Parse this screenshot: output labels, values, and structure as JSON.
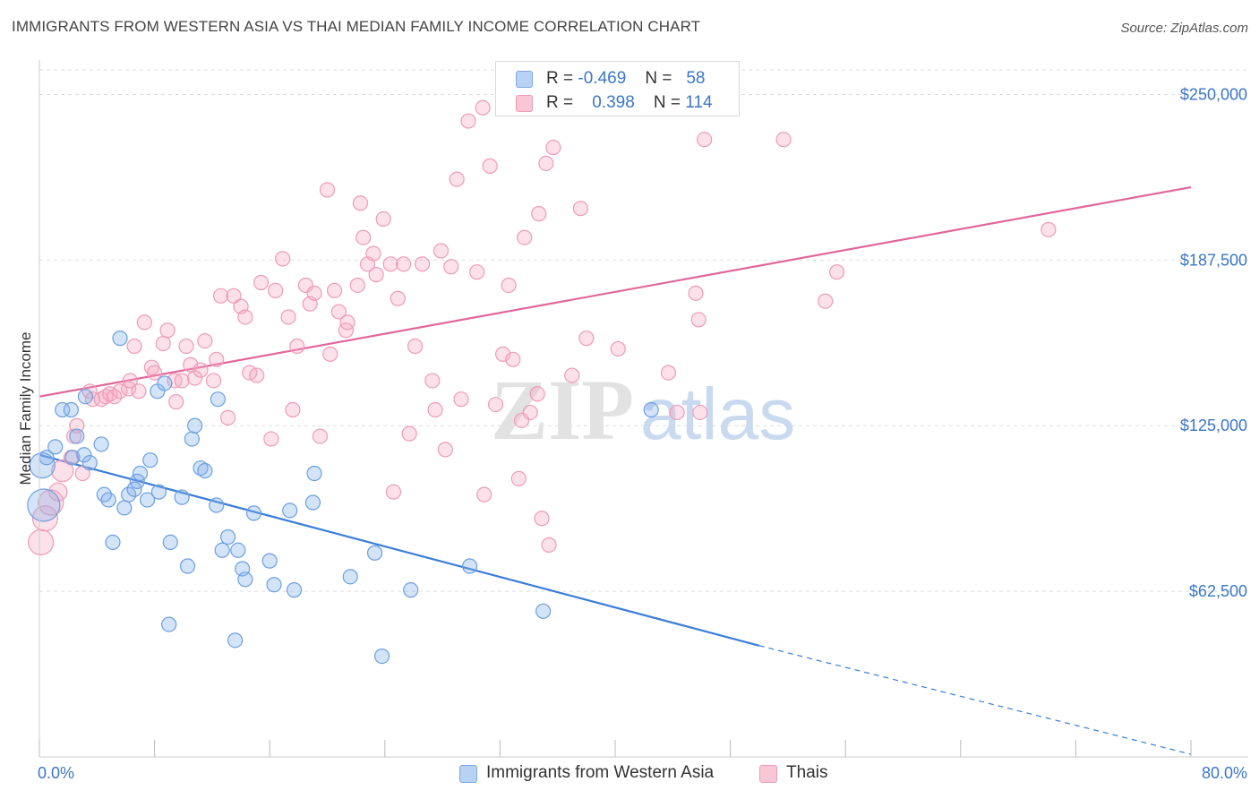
{
  "title": "IMMIGRANTS FROM WESTERN ASIA VS THAI MEDIAN FAMILY INCOME CORRELATION CHART",
  "source": "Source: ZipAtlas.com",
  "watermark": {
    "zip": "ZIP",
    "atlas": "atlas"
  },
  "legend": {
    "rows": [
      {
        "r_label": "R =",
        "r_value": "-0.469",
        "n_label": "N =",
        "n_value": "58",
        "color": "#a9c8f0"
      },
      {
        "r_label": "R =",
        "r_value": "0.398",
        "n_label": "N =",
        "n_value": "114",
        "color": "#f7b8cc"
      }
    ]
  },
  "colors": {
    "blue": "#3b7dd8",
    "blue_fill": "rgba(130,175,235,0.35)",
    "blue_stroke": "#6c9fe0",
    "pink": "#e0679a",
    "pink_fill": "rgba(245,170,195,0.35)",
    "pink_stroke": "#ee9bb8",
    "grid": "#dddddd",
    "tick_text": "#3b76c8"
  },
  "chart_data": {
    "type": "scatter",
    "title": "IMMIGRANTS FROM WESTERN ASIA VS THAI MEDIAN FAMILY INCOME CORRELATION CHART",
    "xlabel": "",
    "ylabel": "Median Family Income",
    "xlim": [
      0,
      80
    ],
    "ylim": [
      0,
      262000
    ],
    "x_tick_labels": [
      "0.0%",
      "80.0%"
    ],
    "y_ticks": [
      62500,
      125000,
      187500,
      250000
    ],
    "y_tick_labels": [
      "$62,500",
      "$125,000",
      "$187,500",
      "$250,000"
    ],
    "grid": true,
    "legend_position": "bottom",
    "series": [
      {
        "name": "Immigrants from Western Asia",
        "color": "#6c9fe0",
        "trend": {
          "x0": 0,
          "y0": 114000,
          "x1": 50,
          "y1": 42000,
          "dash_to_x": 80,
          "dash_to_y": 1000
        },
        "points": [
          [
            0.2,
            110000,
            14
          ],
          [
            0.3,
            95000,
            18
          ],
          [
            0.5,
            113000,
            8
          ],
          [
            1.1,
            117000,
            8
          ],
          [
            1.6,
            131000,
            8
          ],
          [
            2.2,
            131000,
            8
          ],
          [
            2.3,
            113000,
            8
          ],
          [
            2.6,
            121000,
            8
          ],
          [
            3.1,
            114000,
            8
          ],
          [
            3.2,
            136000,
            8
          ],
          [
            3.5,
            111000,
            8
          ],
          [
            4.3,
            118000,
            8
          ],
          [
            4.5,
            99000,
            8
          ],
          [
            4.8,
            97000,
            8
          ],
          [
            5.1,
            81000,
            8
          ],
          [
            5.6,
            158000,
            8
          ],
          [
            5.9,
            94000,
            8
          ],
          [
            6.2,
            99000,
            8
          ],
          [
            6.6,
            101000,
            8
          ],
          [
            6.8,
            104000,
            8
          ],
          [
            7.0,
            107000,
            8
          ],
          [
            7.5,
            97000,
            8
          ],
          [
            7.7,
            112000,
            8
          ],
          [
            8.2,
            138000,
            8
          ],
          [
            8.3,
            100000,
            8
          ],
          [
            8.7,
            141000,
            8
          ],
          [
            9.0,
            50000,
            8
          ],
          [
            9.1,
            81000,
            8
          ],
          [
            9.9,
            98000,
            8
          ],
          [
            10.3,
            72000,
            8
          ],
          [
            10.6,
            120000,
            8
          ],
          [
            10.8,
            125000,
            8
          ],
          [
            11.2,
            109000,
            8
          ],
          [
            11.5,
            108000,
            8
          ],
          [
            12.3,
            95000,
            8
          ],
          [
            12.4,
            135000,
            8
          ],
          [
            12.7,
            78000,
            8
          ],
          [
            13.1,
            83000,
            8
          ],
          [
            13.6,
            44000,
            8
          ],
          [
            13.8,
            78000,
            8
          ],
          [
            14.1,
            71000,
            8
          ],
          [
            14.3,
            67000,
            8
          ],
          [
            14.9,
            92000,
            8
          ],
          [
            16.0,
            74000,
            8
          ],
          [
            16.3,
            65000,
            8
          ],
          [
            17.4,
            93000,
            8
          ],
          [
            17.7,
            63000,
            8
          ],
          [
            19.0,
            96000,
            8
          ],
          [
            19.1,
            107000,
            8
          ],
          [
            21.6,
            68000,
            8
          ],
          [
            23.3,
            77000,
            8
          ],
          [
            23.8,
            38000,
            8
          ],
          [
            25.8,
            63000,
            8
          ],
          [
            29.9,
            72000,
            8
          ],
          [
            35.0,
            55000,
            8
          ],
          [
            42.5,
            131000,
            8
          ]
        ]
      },
      {
        "name": "Thais",
        "color": "#ee9bb8",
        "trend": {
          "x0": 0,
          "y0": 136000,
          "x1": 80,
          "y1": 215000
        },
        "points": [
          [
            0.1,
            81000,
            14
          ],
          [
            0.4,
            90000,
            14
          ],
          [
            0.8,
            96000,
            14
          ],
          [
            1.3,
            100000,
            10
          ],
          [
            1.6,
            108000,
            12
          ],
          [
            2.2,
            113000,
            8
          ],
          [
            2.4,
            121000,
            8
          ],
          [
            2.6,
            125000,
            8
          ],
          [
            3.0,
            107000,
            8
          ],
          [
            3.5,
            138000,
            8
          ],
          [
            3.7,
            135000,
            8
          ],
          [
            4.3,
            135000,
            8
          ],
          [
            4.6,
            136000,
            8
          ],
          [
            4.9,
            137000,
            8
          ],
          [
            5.2,
            136000,
            8
          ],
          [
            5.6,
            138000,
            8
          ],
          [
            6.2,
            139000,
            8
          ],
          [
            6.3,
            142000,
            8
          ],
          [
            6.6,
            155000,
            8
          ],
          [
            6.9,
            138000,
            8
          ],
          [
            7.3,
            164000,
            8
          ],
          [
            7.8,
            147000,
            8
          ],
          [
            8.0,
            145000,
            8
          ],
          [
            8.6,
            156000,
            8
          ],
          [
            8.9,
            161000,
            8
          ],
          [
            9.4,
            142000,
            8
          ],
          [
            9.5,
            134000,
            8
          ],
          [
            9.9,
            142000,
            8
          ],
          [
            10.2,
            155000,
            8
          ],
          [
            10.5,
            148000,
            8
          ],
          [
            10.8,
            143000,
            8
          ],
          [
            11.2,
            146000,
            8
          ],
          [
            11.5,
            157000,
            8
          ],
          [
            12.1,
            142000,
            8
          ],
          [
            12.3,
            150000,
            8
          ],
          [
            12.6,
            174000,
            8
          ],
          [
            13.1,
            128000,
            8
          ],
          [
            13.5,
            174000,
            8
          ],
          [
            14.0,
            170000,
            8
          ],
          [
            14.3,
            166000,
            8
          ],
          [
            14.6,
            145000,
            8
          ],
          [
            15.1,
            144000,
            8
          ],
          [
            15.4,
            179000,
            8
          ],
          [
            16.1,
            120000,
            8
          ],
          [
            16.4,
            176000,
            8
          ],
          [
            16.9,
            188000,
            8
          ],
          [
            17.3,
            166000,
            8
          ],
          [
            17.6,
            131000,
            8
          ],
          [
            17.9,
            155000,
            8
          ],
          [
            18.5,
            178000,
            8
          ],
          [
            18.8,
            171000,
            8
          ],
          [
            19.1,
            175000,
            8
          ],
          [
            19.5,
            121000,
            8
          ],
          [
            20.0,
            214000,
            8
          ],
          [
            20.2,
            152000,
            8
          ],
          [
            20.5,
            176000,
            8
          ],
          [
            20.8,
            168000,
            8
          ],
          [
            21.3,
            161000,
            8
          ],
          [
            21.4,
            164000,
            8
          ],
          [
            22.1,
            178000,
            8
          ],
          [
            22.3,
            209000,
            8
          ],
          [
            22.5,
            196000,
            8
          ],
          [
            22.8,
            186000,
            8
          ],
          [
            23.2,
            190000,
            8
          ],
          [
            23.4,
            182000,
            8
          ],
          [
            23.9,
            203000,
            8
          ],
          [
            24.4,
            186000,
            8
          ],
          [
            24.6,
            100000,
            8
          ],
          [
            24.9,
            173000,
            8
          ],
          [
            25.3,
            186000,
            8
          ],
          [
            25.7,
            122000,
            8
          ],
          [
            26.1,
            155000,
            8
          ],
          [
            26.6,
            186000,
            8
          ],
          [
            27.3,
            142000,
            8
          ],
          [
            27.5,
            131000,
            8
          ],
          [
            27.9,
            191000,
            8
          ],
          [
            28.2,
            116000,
            8
          ],
          [
            28.6,
            185000,
            8
          ],
          [
            29.0,
            218000,
            8
          ],
          [
            29.3,
            135000,
            8
          ],
          [
            29.8,
            240000,
            8
          ],
          [
            30.4,
            183000,
            8
          ],
          [
            30.8,
            245000,
            8
          ],
          [
            30.9,
            99000,
            8
          ],
          [
            31.3,
            223000,
            8
          ],
          [
            31.7,
            133000,
            8
          ],
          [
            32.2,
            152000,
            8
          ],
          [
            32.6,
            178000,
            8
          ],
          [
            32.9,
            150000,
            8
          ],
          [
            33.3,
            105000,
            8
          ],
          [
            33.5,
            127000,
            8
          ],
          [
            33.7,
            196000,
            8
          ],
          [
            34.1,
            130000,
            8
          ],
          [
            34.6,
            137000,
            8
          ],
          [
            34.7,
            205000,
            8
          ],
          [
            34.9,
            90000,
            8
          ],
          [
            35.2,
            224000,
            8
          ],
          [
            35.4,
            80000,
            8
          ],
          [
            35.7,
            230000,
            8
          ],
          [
            37.0,
            144000,
            8
          ],
          [
            37.6,
            207000,
            8
          ],
          [
            38.0,
            158000,
            8
          ],
          [
            40.2,
            154000,
            8
          ],
          [
            43.7,
            145000,
            8
          ],
          [
            44.3,
            130000,
            8
          ],
          [
            45.6,
            175000,
            8
          ],
          [
            45.8,
            165000,
            8
          ],
          [
            45.9,
            130000,
            8
          ],
          [
            46.2,
            233000,
            8
          ],
          [
            51.7,
            233000,
            8
          ],
          [
            54.6,
            172000,
            8
          ],
          [
            55.4,
            183000,
            8
          ],
          [
            70.1,
            199000,
            8
          ]
        ]
      }
    ]
  },
  "bottom_legend": [
    {
      "label": "Immigrants from Western Asia",
      "color": "#a9c8f0"
    },
    {
      "label": "Thais",
      "color": "#f7b8cc"
    }
  ]
}
